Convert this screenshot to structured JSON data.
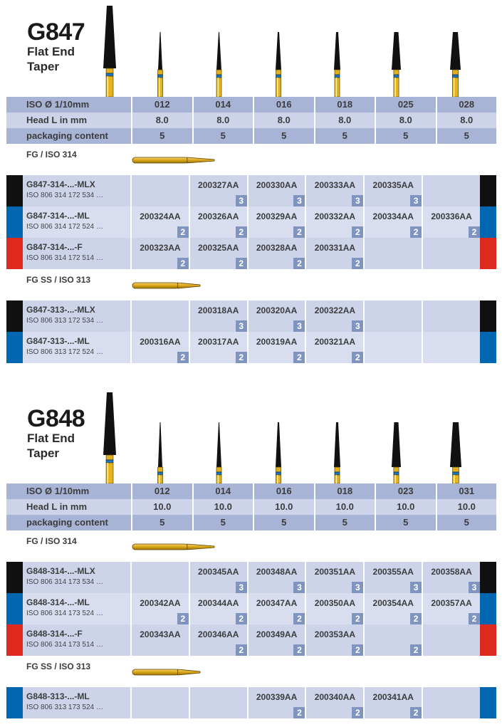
{
  "colors": {
    "black": "#111111",
    "blue": "#0066b0",
    "red": "#de2a1c",
    "header_dark": "#a8b4d6",
    "header_light": "#cdd4ea",
    "badge": "#7f95bf"
  },
  "products": [
    {
      "title": "G847",
      "subtitle1": "Flat End",
      "subtitle2": "Taper",
      "spec": {
        "iso_label": "ISO Ø 1/10mm",
        "iso": [
          "012",
          "014",
          "016",
          "018",
          "025",
          "028"
        ],
        "head_label": "Head L in mm",
        "head": [
          "8.0",
          "8.0",
          "8.0",
          "8.0",
          "8.0",
          "8.0"
        ],
        "pack_label": "packaging content",
        "pack": [
          "5",
          "5",
          "5",
          "5",
          "5",
          "5"
        ]
      },
      "groups": [
        {
          "label": "FG / ISO 314",
          "rows": [
            {
              "stripe": "black",
              "name": "G847-314-...-MLX",
              "iso": "ISO 806 314 172 534 …",
              "cells": [
                {
                  "code": "",
                  "badge": ""
                },
                {
                  "code": "200327AA",
                  "badge": "3"
                },
                {
                  "code": "200330AA",
                  "badge": "3"
                },
                {
                  "code": "200333AA",
                  "badge": "3"
                },
                {
                  "code": "200335AA",
                  "badge": "3"
                },
                {
                  "code": "",
                  "badge": ""
                }
              ]
            },
            {
              "stripe": "blue",
              "name": "G847-314-...-ML",
              "iso": "ISO 806 314 172 524 …",
              "cells": [
                {
                  "code": "200324AA",
                  "badge": "2"
                },
                {
                  "code": "200326AA",
                  "badge": "2"
                },
                {
                  "code": "200329AA",
                  "badge": "2"
                },
                {
                  "code": "200332AA",
                  "badge": "2"
                },
                {
                  "code": "200334AA",
                  "badge": "2"
                },
                {
                  "code": "200336AA",
                  "badge": "2"
                }
              ]
            },
            {
              "stripe": "red",
              "name": "G847-314-...-F",
              "iso": "ISO 806 314 172 514 …",
              "cells": [
                {
                  "code": "200323AA",
                  "badge": "2"
                },
                {
                  "code": "200325AA",
                  "badge": "2"
                },
                {
                  "code": "200328AA",
                  "badge": "2"
                },
                {
                  "code": "200331AA",
                  "badge": "2"
                },
                {
                  "code": "",
                  "badge": ""
                },
                {
                  "code": "",
                  "badge": ""
                }
              ]
            }
          ]
        },
        {
          "label": "FG SS / ISO 313",
          "rows": [
            {
              "stripe": "black",
              "name": "G847-313-...-MLX",
              "iso": "ISO 806 313 172 534 …",
              "cells": [
                {
                  "code": "",
                  "badge": ""
                },
                {
                  "code": "200318AA",
                  "badge": "3"
                },
                {
                  "code": "200320AA",
                  "badge": "3"
                },
                {
                  "code": "200322AA",
                  "badge": "3"
                },
                {
                  "code": "",
                  "badge": ""
                },
                {
                  "code": "",
                  "badge": ""
                }
              ]
            },
            {
              "stripe": "blue",
              "name": "G847-313-...-ML",
              "iso": "ISO 806 313 172 524 …",
              "cells": [
                {
                  "code": "200316AA",
                  "badge": "2"
                },
                {
                  "code": "200317AA",
                  "badge": "2"
                },
                {
                  "code": "200319AA",
                  "badge": "2"
                },
                {
                  "code": "200321AA",
                  "badge": "2"
                },
                {
                  "code": "",
                  "badge": ""
                },
                {
                  "code": "",
                  "badge": ""
                }
              ]
            }
          ]
        }
      ]
    },
    {
      "title": "G848",
      "subtitle1": "Flat End",
      "subtitle2": "Taper",
      "spec": {
        "iso_label": "ISO Ø 1/10mm",
        "iso": [
          "012",
          "014",
          "016",
          "018",
          "023",
          "031"
        ],
        "head_label": "Head L in mm",
        "head": [
          "10.0",
          "10.0",
          "10.0",
          "10.0",
          "10.0",
          "10.0"
        ],
        "pack_label": "packaging content",
        "pack": [
          "5",
          "5",
          "5",
          "5",
          "5",
          "5"
        ]
      },
      "groups": [
        {
          "label": "FG / ISO 314",
          "rows": [
            {
              "stripe": "black",
              "name": "G848-314-...-MLX",
              "iso": "ISO 806 314 173 534 …",
              "cells": [
                {
                  "code": "",
                  "badge": ""
                },
                {
                  "code": "200345AA",
                  "badge": "3"
                },
                {
                  "code": "200348AA",
                  "badge": "3"
                },
                {
                  "code": "200351AA",
                  "badge": "3"
                },
                {
                  "code": "200355AA",
                  "badge": "3"
                },
                {
                  "code": "200358AA",
                  "badge": "3"
                }
              ]
            },
            {
              "stripe": "blue",
              "name": "G848-314-...-ML",
              "iso": "ISO 806 314 173 524 …",
              "cells": [
                {
                  "code": "200342AA",
                  "badge": "2"
                },
                {
                  "code": "200344AA",
                  "badge": "2"
                },
                {
                  "code": "200347AA",
                  "badge": "2"
                },
                {
                  "code": "200350AA",
                  "badge": "2"
                },
                {
                  "code": "200354AA",
                  "badge": "2"
                },
                {
                  "code": "200357AA",
                  "badge": "2"
                }
              ]
            },
            {
              "stripe": "red",
              "name": "G848-314-...-F",
              "iso": "ISO 806 314 173 514 …",
              "cells": [
                {
                  "code": "200343AA",
                  "badge": ""
                },
                {
                  "code": "200346AA",
                  "badge": "2"
                },
                {
                  "code": "200349AA",
                  "badge": "2"
                },
                {
                  "code": "200353AA",
                  "badge": "2"
                },
                {
                  "code": "",
                  "badge": "2"
                },
                {
                  "code": "",
                  "badge": ""
                }
              ]
            }
          ]
        },
        {
          "label": "FG SS / ISO 313",
          "rows": [
            {
              "stripe": "blue",
              "name": "G848-313-...-ML",
              "iso": "ISO 806 313 173 524 …",
              "cells": [
                {
                  "code": "",
                  "badge": ""
                },
                {
                  "code": "",
                  "badge": ""
                },
                {
                  "code": "200339AA",
                  "badge": "2"
                },
                {
                  "code": "200340AA",
                  "badge": "2"
                },
                {
                  "code": "200341AA",
                  "badge": "2"
                },
                {
                  "code": "",
                  "badge": ""
                }
              ]
            }
          ]
        }
      ]
    }
  ]
}
